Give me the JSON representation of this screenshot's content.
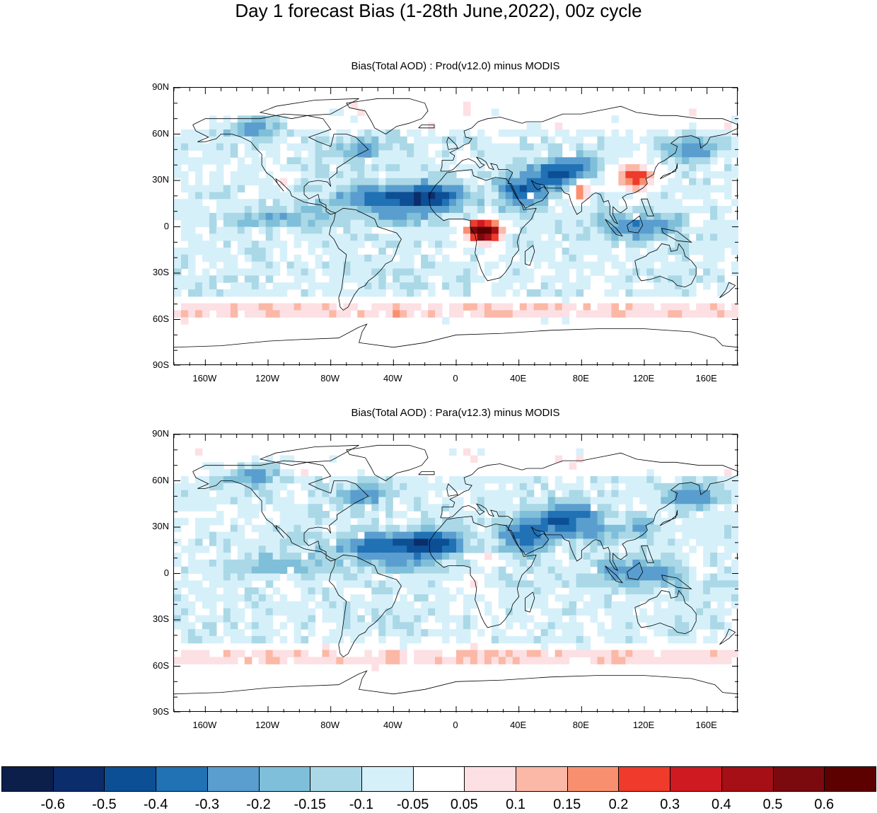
{
  "title": "Day 1 forecast Bias (1-28th June,2022), 00z cycle",
  "panels": [
    {
      "title": "Bias(Total AOD) : Prod(v12.0) minus MODIS"
    },
    {
      "title": "Bias(Total AOD) : Para(v12.3) minus MODIS"
    }
  ],
  "lat_labels": [
    "90N",
    "60N",
    "30N",
    "0",
    "30S",
    "60S",
    "90S"
  ],
  "lon_labels": [
    "160W",
    "120W",
    "80W",
    "40W",
    "0",
    "40E",
    "80E",
    "120E",
    "160E"
  ],
  "colorbar": {
    "labels": [
      "-0.6",
      "-0.5",
      "-0.4",
      "-0.3",
      "-0.2",
      "-0.15",
      "-0.1",
      "-0.05",
      "0.05",
      "0.1",
      "0.15",
      "0.2",
      "0.3",
      "0.4",
      "0.5",
      "0.6"
    ],
    "colors": [
      "#0b1f4a",
      "#0c2d6b",
      "#0d4f94",
      "#2171b5",
      "#5a9ecf",
      "#7fbfd9",
      "#aad8e6",
      "#d6f0fa",
      "#ffffff",
      "#fde0e4",
      "#fbb8a6",
      "#f8906f",
      "#ee3b2b",
      "#cf1a22",
      "#a50f15",
      "#7b0a0e",
      "#5c0000"
    ]
  }
}
